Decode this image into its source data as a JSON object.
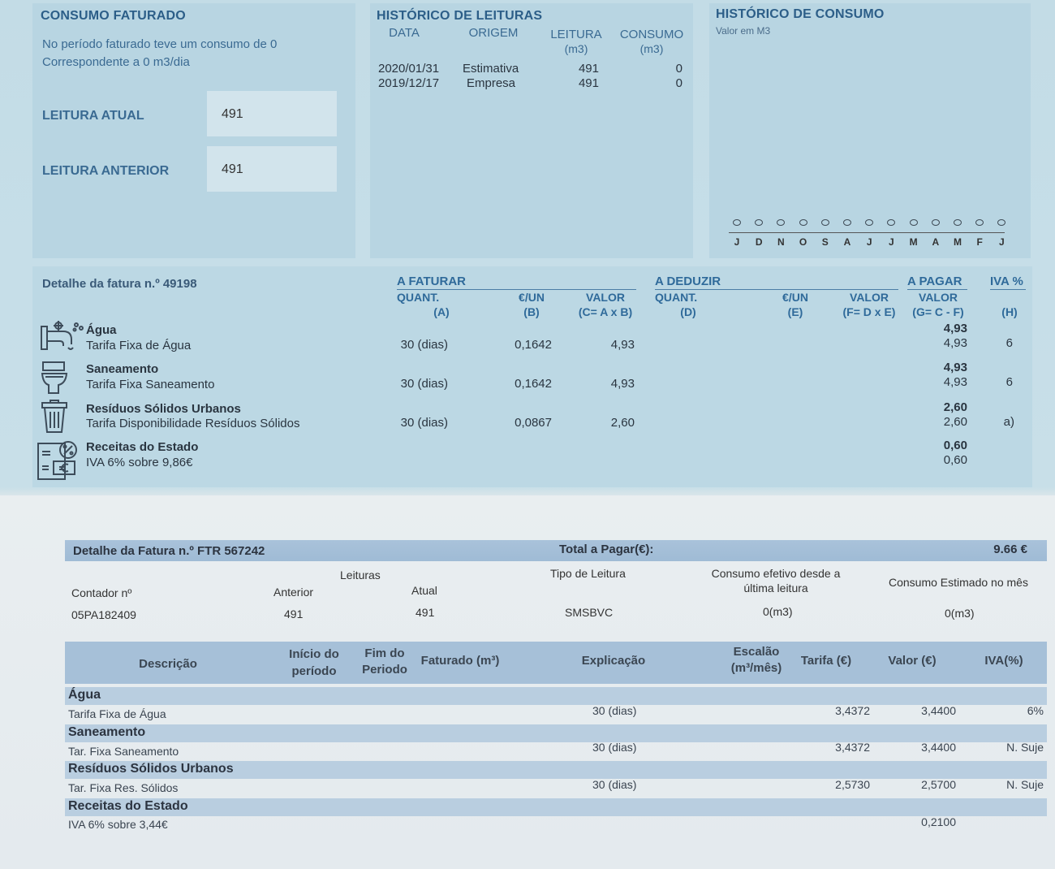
{
  "consumo_faturado": {
    "title": "CONSUMO FATURADO",
    "line1": "No período faturado teve um consumo de 0",
    "line2": "Correspondente a 0 m3/dia",
    "leitura_atual_label": "LEITURA ATUAL",
    "leitura_atual_value": "491",
    "leitura_anterior_label": "LEITURA ANTERIOR",
    "leitura_anterior_value": "491"
  },
  "historico_leituras": {
    "title": "HISTÓRICO DE LEITURAS",
    "headers": {
      "data": "DATA",
      "origem": "ORIGEM",
      "leitura": "LEITURA",
      "leitura_unit": "(m3)",
      "consumo": "CONSUMO",
      "consumo_unit": "(m3)"
    },
    "rows": [
      {
        "data": "2020/01/31",
        "origem": "Estimativa",
        "leitura": "491",
        "consumo": "0"
      },
      {
        "data": "2019/12/17",
        "origem": "Empresa",
        "leitura": "491",
        "consumo": "0"
      }
    ]
  },
  "historico_consumo": {
    "title": "HISTÓRICO DE CONSUMO",
    "subtitle": "Valor em M3"
  },
  "chart_data": {
    "type": "line",
    "title": "HISTÓRICO DE CONSUMO",
    "subtitle": "Valor em M3",
    "categories": [
      "J",
      "D",
      "N",
      "O",
      "S",
      "A",
      "J",
      "J",
      "M",
      "A",
      "M",
      "F",
      "J"
    ],
    "values": [
      0,
      0,
      0,
      0,
      0,
      0,
      0,
      0,
      0,
      0,
      0,
      0,
      0
    ]
  },
  "detalhe": {
    "title": "Detalhe da fatura n.º 49198",
    "a_faturar": "A FATURAR",
    "a_deduzir": "A DEDUZIR",
    "a_pagar": "A PAGAR",
    "iva_pct": "IVA %",
    "h_quant_a": "QUANT.",
    "h_quant_a_sub": "(A)",
    "h_eur_b": "€/UN",
    "h_eur_b_sub": "(B)",
    "h_valor_c": "VALOR",
    "h_valor_c_sub": "(C= A x B)",
    "h_quant_d": "QUANT.",
    "h_quant_d_sub": "(D)",
    "h_eur_e": "€/UN",
    "h_eur_e_sub": "(E)",
    "h_valor_f": "VALOR",
    "h_valor_f_sub": "(F= D x E)",
    "h_valor_g": "VALOR",
    "h_valor_g_sub": "(G= C - F)",
    "h_h_sub": "(H)",
    "items": [
      {
        "name": "Água",
        "desc": "Tarifa Fixa de Água",
        "quant": "30 (dias)",
        "eur": "0,1642",
        "valor": "4,93",
        "total": "4,93",
        "pagar": "4,93",
        "iva": "6"
      },
      {
        "name": "Saneamento",
        "desc": "Tarifa Fixa Saneamento",
        "quant": "30 (dias)",
        "eur": "0,1642",
        "valor": "4,93",
        "total": "4,93",
        "pagar": "4,93",
        "iva": "6"
      },
      {
        "name": "Resíduos Sólidos Urbanos",
        "desc": "Tarifa Disponibilidade Resíduos Sólidos",
        "quant": "30 (dias)",
        "eur": "0,0867",
        "valor": "2,60",
        "total": "2,60",
        "pagar": "2,60",
        "iva": "a)"
      },
      {
        "name": "Receitas do Estado",
        "desc": "IVA 6% sobre 9,86€",
        "total": "0,60",
        "pagar": "0,60"
      }
    ]
  },
  "ftr": {
    "title": "Detalhe da Fatura n.º FTR 567242",
    "total_label": "Total a Pagar(€):",
    "total_value": "9.66 €",
    "contador_label": "Contador nº",
    "leituras_label": "Leituras",
    "anterior_label": "Anterior",
    "atual_label": "Atual",
    "tipo_label": "Tipo de Leitura",
    "consumo_efetivo_label_1": "Consumo efetivo desde a",
    "consumo_efetivo_label_2": "última leitura",
    "consumo_estimado_label": "Consumo Estimado no mês",
    "contador_value": "05PA182409",
    "anterior_value": "491",
    "atual_value": "491",
    "tipo_value": "SMSBVC",
    "consumo_efetivo_value": "0(m3)",
    "consumo_estimado_value": "0(m3)",
    "headers": {
      "descricao": "Descrição",
      "inicio_1": "Início do",
      "inicio_2": "período",
      "fim_1": "Fim do",
      "fim_2": "Periodo",
      "faturado": "Faturado (m³)",
      "explicacao": "Explicação",
      "escalao_1": "Escalão",
      "escalao_2": "(m³/mês)",
      "tarifa": "Tarifa (€)",
      "valor": "Valor (€)",
      "iva": "IVA(%)"
    },
    "groups": [
      {
        "label": "Água",
        "desc": "Tarifa Fixa de Água",
        "explicacao": "30 (dias)",
        "tarifa": "3,4372",
        "valor": "3,4400",
        "iva": "6%"
      },
      {
        "label": "Saneamento",
        "desc": "Tar. Fixa Saneamento",
        "explicacao": "30 (dias)",
        "tarifa": "3,4372",
        "valor": "3,4400",
        "iva": "N. Suje"
      },
      {
        "label": "Resíduos Sólidos Urbanos",
        "desc": "Tar. Fixa Res. Sólidos",
        "explicacao": "30 (dias)",
        "tarifa": "2,5730",
        "valor": "2,5700",
        "iva": "N. Suje"
      },
      {
        "label": "Receitas do Estado",
        "desc": "IVA 6% sobre 3,44€",
        "explicacao": "",
        "tarifa": "",
        "valor": "0,2100",
        "iva": ""
      }
    ]
  }
}
